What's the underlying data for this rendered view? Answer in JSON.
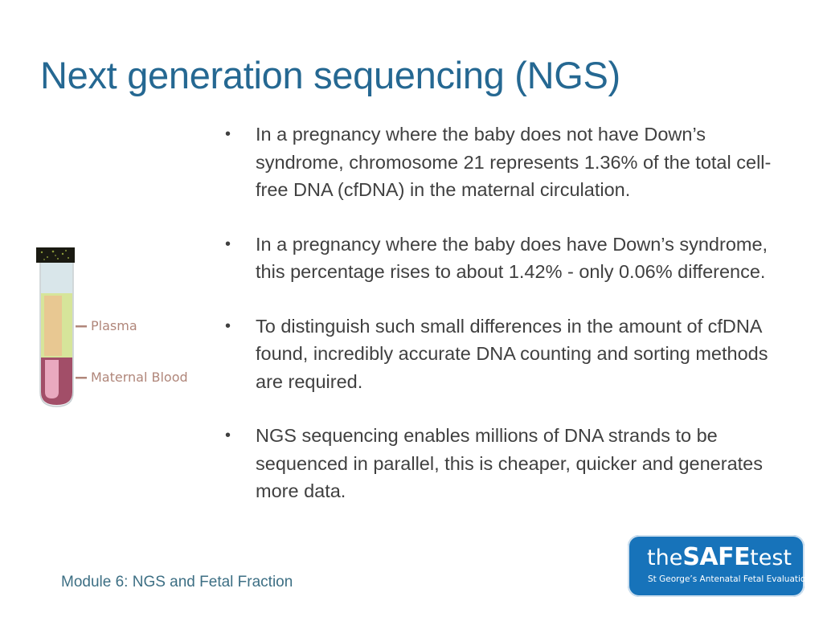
{
  "slide": {
    "title": "Next generation sequencing (NGS)",
    "bullets": [
      "In a pregnancy where the baby does not have Down’s syndrome, chromosome 21 represents 1.36% of the total cell-free DNA (cfDNA) in the maternal circulation.",
      "In a pregnancy where the baby does have Down’s syndrome, this percentage rises to about 1.42% - only 0.06% difference.",
      "To distinguish such small differences in the amount of cfDNA found, incredibly accurate DNA counting and sorting methods are required.",
      "NGS sequencing enables millions of DNA strands to be sequenced in parallel, this is cheaper, quicker and generates more data."
    ],
    "bullet_symbol": "•",
    "footer": "Module 6: NGS and Fetal Fraction"
  },
  "figure": {
    "labels": {
      "plasma": "Plasma",
      "maternal_blood": "Maternal Blood"
    },
    "colors": {
      "cap": "#1a1a12",
      "tube_top": "#d9e6ea",
      "plasma": "#d6e59a",
      "plasma_inner": "#e8c892",
      "blood": "#a24e68",
      "blood_inner": "#e9a9bf",
      "label": "#b0867a"
    }
  },
  "logo": {
    "the": "the",
    "safe": "SAFE",
    "test": "test",
    "subtitle": "St George’s Antenatal Fetal Evaluation",
    "background": "#1773ba"
  },
  "theme": {
    "title_color": "#256892",
    "body_color": "#404040",
    "footer_color": "#3d6f84"
  }
}
